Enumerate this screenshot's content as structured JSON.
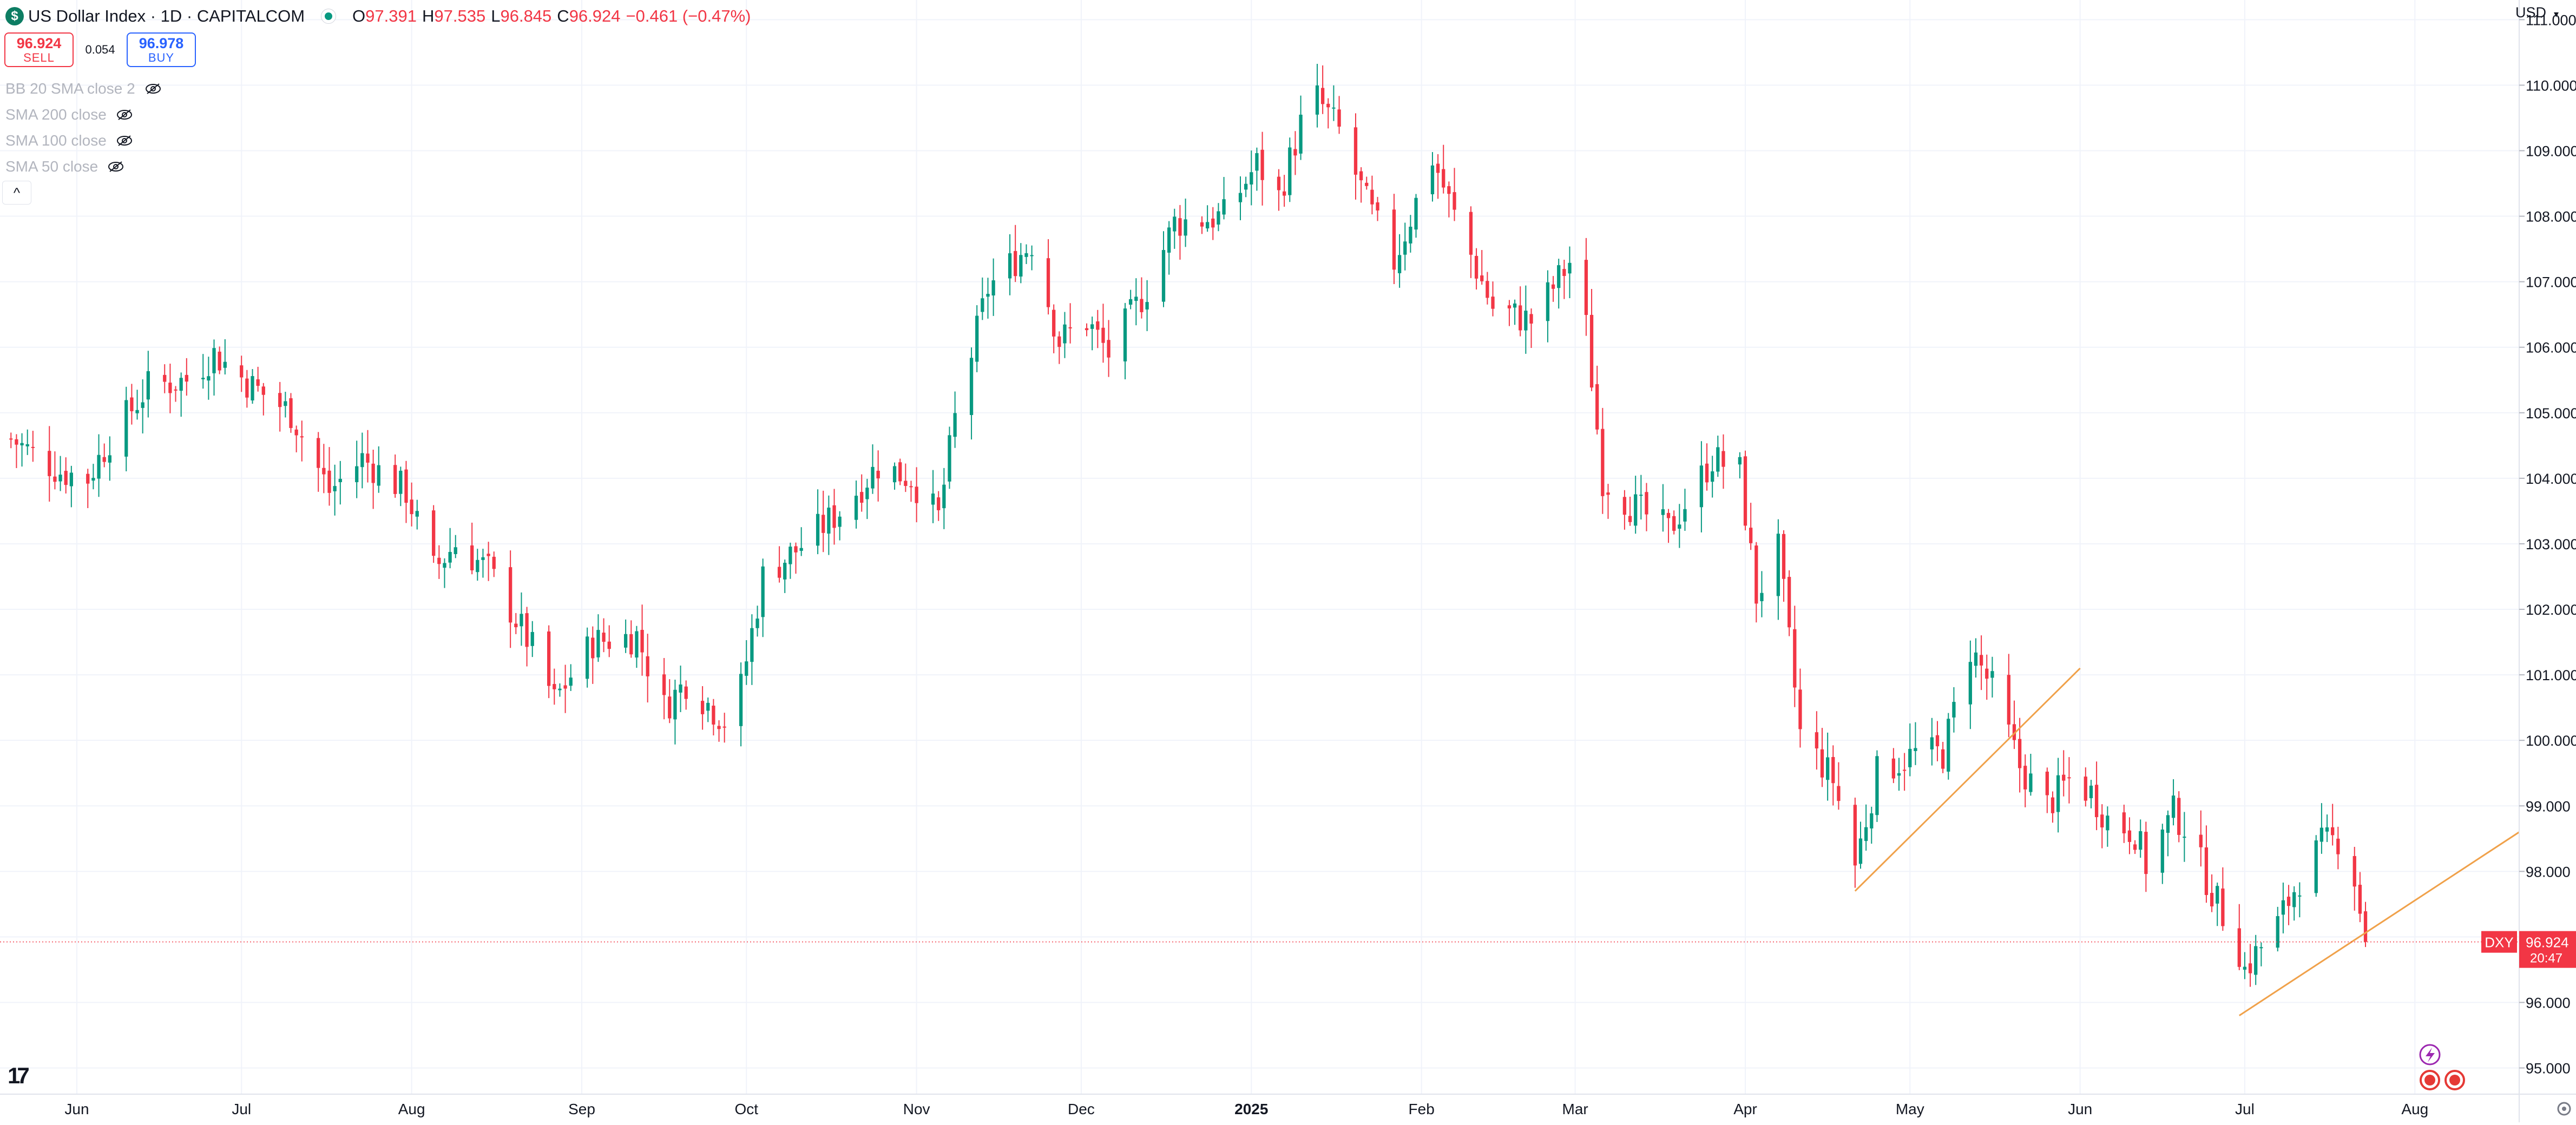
{
  "header": {
    "logo_letter": "$",
    "symbol_title": "US Dollar Index · 1D · CAPITALCOM",
    "ohlc": [
      {
        "key": "O",
        "value": "97.391"
      },
      {
        "key": "H",
        "value": "97.535"
      },
      {
        "key": "L",
        "value": "96.845"
      },
      {
        "key": "C",
        "value": "96.924"
      }
    ],
    "change": "−0.461 (−0.47%)"
  },
  "trade": {
    "sell_price": "96.924",
    "sell_label": "SELL",
    "spread": "0.054",
    "buy_price": "96.978",
    "buy_label": "BUY"
  },
  "indicators": [
    {
      "label": "BB 20 SMA close 2"
    },
    {
      "label": "SMA 200 close"
    },
    {
      "label": "SMA 100 close"
    },
    {
      "label": "SMA 50 close"
    }
  ],
  "collapse_label": "^",
  "currency": {
    "label": "USD",
    "caret": "▾"
  },
  "tv_logo": "17",
  "colors": {
    "up": "#089981",
    "down": "#f23645",
    "trendline": "#f0a14a",
    "grid": "#f0f3fa",
    "text": "#131722"
  },
  "chart_data": {
    "type": "candlestick",
    "title": "US Dollar Index · 1D · CAPITALCOM",
    "ylim": [
      94.6,
      111.3
    ],
    "y_ticks": [
      95,
      96,
      97,
      98,
      99,
      100,
      101,
      102,
      103,
      104,
      105,
      106,
      107,
      108,
      109,
      110,
      111
    ],
    "y_tick_labels": [
      "95.000",
      "96.000",
      "97.000",
      "98.000",
      "99.000",
      "100.000",
      "101.000",
      "102.000",
      "103.000",
      "104.000",
      "105.000",
      "106.000",
      "107.000",
      "108.000",
      "109.000",
      "110.000",
      "111.000"
    ],
    "x_labels": [
      {
        "label": "Jun",
        "date": "2024-06-01"
      },
      {
        "label": "Jul",
        "date": "2024-07-01"
      },
      {
        "label": "Aug",
        "date": "2024-08-01"
      },
      {
        "label": "Sep",
        "date": "2024-09-01"
      },
      {
        "label": "Oct",
        "date": "2024-10-01"
      },
      {
        "label": "Nov",
        "date": "2024-11-01"
      },
      {
        "label": "Dec",
        "date": "2024-12-01"
      },
      {
        "label": "2025",
        "date": "2025-01-01",
        "bold": true
      },
      {
        "label": "Feb",
        "date": "2025-02-01"
      },
      {
        "label": "Mar",
        "date": "2025-03-01"
      },
      {
        "label": "Apr",
        "date": "2025-04-01"
      },
      {
        "label": "May",
        "date": "2025-05-01"
      },
      {
        "label": "Jun",
        "date": "2025-06-01"
      },
      {
        "label": "Jul",
        "date": "2025-07-01"
      },
      {
        "label": "Aug",
        "date": "2025-08-01"
      }
    ],
    "x_range": [
      "2024-05-18",
      "2025-08-20"
    ],
    "close_anchors": [
      [
        "2024-05-20",
        104.6
      ],
      [
        "2024-05-29",
        104.1
      ],
      [
        "2024-06-03",
        104.0
      ],
      [
        "2024-06-07",
        104.6
      ],
      [
        "2024-06-14",
        105.4
      ],
      [
        "2024-06-21",
        105.5
      ],
      [
        "2024-06-26",
        105.9
      ],
      [
        "2024-07-03",
        105.4
      ],
      [
        "2024-07-10",
        105.0
      ],
      [
        "2024-07-17",
        103.8
      ],
      [
        "2024-07-23",
        104.3
      ],
      [
        "2024-07-31",
        103.8
      ],
      [
        "2024-08-05",
        102.6
      ],
      [
        "2024-08-09",
        103.0
      ],
      [
        "2024-08-15",
        102.6
      ],
      [
        "2024-08-23",
        101.4
      ],
      [
        "2024-08-27",
        100.6
      ],
      [
        "2024-09-03",
        101.5
      ],
      [
        "2024-09-11",
        101.6
      ],
      [
        "2024-09-16",
        100.5
      ],
      [
        "2024-09-20",
        100.9
      ],
      [
        "2024-09-27",
        100.3
      ],
      [
        "2024-09-30",
        100.8
      ],
      [
        "2024-10-04",
        102.5
      ],
      [
        "2024-10-10",
        102.9
      ],
      [
        "2024-10-18",
        103.5
      ],
      [
        "2024-10-25",
        104.2
      ],
      [
        "2024-10-31",
        104.0
      ],
      [
        "2024-11-05",
        103.4
      ],
      [
        "2024-11-08",
        104.9
      ],
      [
        "2024-11-14",
        106.9
      ],
      [
        "2024-11-22",
        107.6
      ],
      [
        "2024-11-27",
        106.1
      ],
      [
        "2024-12-02",
        106.4
      ],
      [
        "2024-12-06",
        105.9
      ],
      [
        "2024-12-13",
        106.9
      ],
      [
        "2024-12-18",
        107.9
      ],
      [
        "2024-12-27",
        108.0
      ],
      [
        "2025-01-02",
        108.8
      ],
      [
        "2025-01-06",
        108.3
      ],
      [
        "2025-01-10",
        109.4
      ],
      [
        "2025-01-13",
        109.8
      ],
      [
        "2025-01-17",
        109.3
      ],
      [
        "2025-01-22",
        108.2
      ],
      [
        "2025-01-27",
        107.3
      ],
      [
        "2025-02-03",
        108.9
      ],
      [
        "2025-02-07",
        108.0
      ],
      [
        "2025-02-14",
        106.6
      ],
      [
        "2025-02-21",
        106.4
      ],
      [
        "2025-02-28",
        107.3
      ],
      [
        "2025-03-03",
        106.3
      ],
      [
        "2025-03-06",
        104.0
      ],
      [
        "2025-03-11",
        103.6
      ],
      [
        "2025-03-18",
        103.2
      ],
      [
        "2025-03-26",
        104.3
      ],
      [
        "2025-03-31",
        104.1
      ],
      [
        "2025-04-03",
        102.2
      ],
      [
        "2025-04-07",
        102.9
      ],
      [
        "2025-04-11",
        100.1
      ],
      [
        "2025-04-17",
        99.4
      ],
      [
        "2025-04-21",
        98.1
      ],
      [
        "2025-04-25",
        99.5
      ],
      [
        "2025-05-02",
        99.8
      ],
      [
        "2025-05-07",
        99.8
      ],
      [
        "2025-05-12",
        101.4
      ],
      [
        "2025-05-16",
        100.8
      ],
      [
        "2025-05-21",
        99.6
      ],
      [
        "2025-05-26",
        99.0
      ],
      [
        "2025-05-30",
        99.4
      ],
      [
        "2025-06-03",
        99.2
      ],
      [
        "2025-06-06",
        98.8
      ],
      [
        "2025-06-11",
        98.6
      ],
      [
        "2025-06-13",
        98.1
      ],
      [
        "2025-06-18",
        98.9
      ],
      [
        "2025-06-20",
        98.7
      ],
      [
        "2025-06-25",
        97.7
      ],
      [
        "2025-06-30",
        96.8
      ],
      [
        "2025-07-01",
        96.5
      ],
      [
        "2025-07-07",
        97.2
      ],
      [
        "2025-07-11",
        97.9
      ],
      [
        "2025-07-15",
        98.4
      ],
      [
        "2025-07-18",
        98.5
      ],
      [
        "2025-07-21",
        97.9
      ],
      [
        "2025-07-22",
        97.4
      ],
      [
        "2025-07-23",
        96.9
      ]
    ],
    "last_candle": {
      "date": "2025-07-23",
      "open": 97.391,
      "high": 97.535,
      "low": 96.845,
      "close": 96.924
    },
    "price_line": 96.924,
    "price_tag": {
      "symbol": "DXY",
      "price": "96.924",
      "countdown": "20:47"
    },
    "trendlines": [
      {
        "from": [
          "2025-04-21",
          97.7
        ],
        "to": [
          "2025-06-01",
          101.1
        ]
      },
      {
        "from": [
          "2025-06-30",
          95.8
        ],
        "to": [
          "2025-08-20",
          98.6
        ]
      }
    ]
  }
}
